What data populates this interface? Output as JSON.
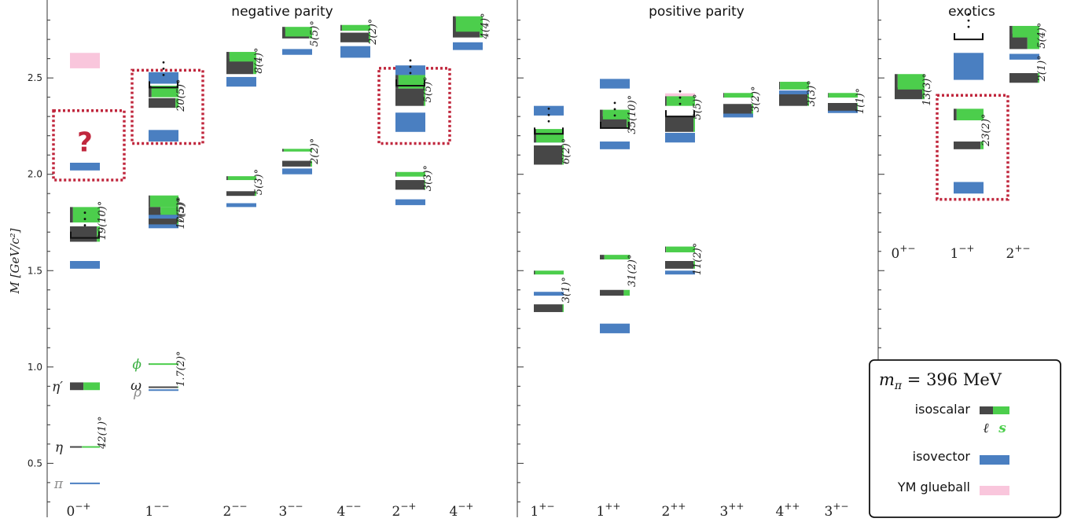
{
  "chart_data": {
    "type": "spectrum",
    "ylabel": "M [GeV/c²]",
    "ylim": [
      0.22,
      2.88
    ],
    "yticks": [
      0.5,
      1.0,
      1.5,
      2.0,
      2.5
    ],
    "ytick_labels": [
      "0.5",
      "1.0",
      "1.5",
      "2.0",
      "2.5"
    ],
    "sections": [
      {
        "key": "neg",
        "title": "negative parity"
      },
      {
        "key": "pos",
        "title": "positive parity"
      },
      {
        "key": "ex",
        "title": "exotics"
      }
    ],
    "columns": [
      {
        "id": "c0mp",
        "section": "neg",
        "base": "0",
        "sup": "−+"
      },
      {
        "id": "c1mm",
        "section": "neg",
        "base": "1",
        "sup": "−−"
      },
      {
        "id": "c2mm",
        "section": "neg",
        "base": "2",
        "sup": "−−"
      },
      {
        "id": "c3mm",
        "section": "neg",
        "base": "3",
        "sup": "−−"
      },
      {
        "id": "c4mm",
        "section": "neg",
        "base": "4",
        "sup": "−−"
      },
      {
        "id": "c2mp",
        "section": "neg",
        "base": "2",
        "sup": "−+"
      },
      {
        "id": "c4mp",
        "section": "neg",
        "base": "4",
        "sup": "−+"
      },
      {
        "id": "c1pm",
        "section": "pos",
        "base": "1",
        "sup": "+−"
      },
      {
        "id": "c1pp",
        "section": "pos",
        "base": "1",
        "sup": "++"
      },
      {
        "id": "c2pp",
        "section": "pos",
        "base": "2",
        "sup": "++"
      },
      {
        "id": "c3pp",
        "section": "pos",
        "base": "3",
        "sup": "++"
      },
      {
        "id": "c4pp",
        "section": "pos",
        "base": "4",
        "sup": "++"
      },
      {
        "id": "c3pm",
        "section": "pos",
        "base": "3",
        "sup": "+−"
      },
      {
        "id": "c0pm",
        "section": "ex",
        "base": "0",
        "sup": "+−"
      },
      {
        "id": "c1mp",
        "section": "ex",
        "base": "1",
        "sup": "−+"
      },
      {
        "id": "c2pm",
        "section": "ex",
        "base": "2",
        "sup": "+−"
      }
    ],
    "states": [
      {
        "col": "c0mp",
        "kind": "isovector",
        "mass": 0.396,
        "err": 0.002
      },
      {
        "col": "c0mp",
        "kind": "isovector",
        "mass": 1.53,
        "err": 0.02
      },
      {
        "col": "c0mp",
        "kind": "isovector",
        "mass": 2.04,
        "err": 0.02
      },
      {
        "col": "c0mp",
        "kind": "glueball",
        "mass": 2.59,
        "err": 0.04
      },
      {
        "col": "c0mp",
        "kind": "isoscalar",
        "mass": 0.585,
        "err": 0.003,
        "strange": 0.6
      },
      {
        "col": "c0mp",
        "kind": "isoscalar",
        "mass": 0.9,
        "err": 0.02,
        "strange": 0.55
      },
      {
        "col": "c0mp",
        "kind": "isoscalar",
        "mass": 1.69,
        "err": 0.04,
        "strange": 0.1
      },
      {
        "col": "c0mp",
        "kind": "isoscalar",
        "mass": 1.79,
        "err": 0.04,
        "strange": 0.9
      },
      {
        "col": "c1mm",
        "kind": "isovector",
        "mass": 0.88,
        "err": 0.003
      },
      {
        "col": "c1mm",
        "kind": "isovector",
        "mass": 1.74,
        "err": 0.02
      },
      {
        "col": "c1mm",
        "kind": "isovector",
        "mass": 2.2,
        "err": 0.03
      },
      {
        "col": "c1mm",
        "kind": "isovector",
        "mass": 2.5,
        "err": 0.03
      },
      {
        "col": "c1mm",
        "kind": "isoscalar",
        "mass": 0.895,
        "err": 0.003,
        "strange": 0.02
      },
      {
        "col": "c1mm",
        "kind": "isoscalar",
        "mass": 1.015,
        "err": 0.003,
        "strange": 0.98
      },
      {
        "col": "c1mm",
        "kind": "isoscalar",
        "mass": 1.77,
        "err": 0.03,
        "strange": 0.05
      },
      {
        "col": "c1mm",
        "kind": "isoscalar",
        "mass": 1.86,
        "err": 0.03,
        "strange": 0.95
      },
      {
        "col": "c1mm",
        "kind": "isovector",
        "mass": 1.78,
        "err": 0.01
      },
      {
        "col": "c1mm",
        "kind": "isoscalar",
        "mass": 1.81,
        "err": 0.02,
        "strange": 0.6
      },
      {
        "col": "c1mm",
        "kind": "isoscalar",
        "mass": 2.37,
        "err": 0.025,
        "strange": 0.1
      },
      {
        "col": "c1mm",
        "kind": "isoscalar",
        "mass": 2.43,
        "err": 0.03,
        "strange": 0.9
      },
      {
        "col": "c2mm",
        "kind": "isovector",
        "mass": 1.84,
        "err": 0.01
      },
      {
        "col": "c2mm",
        "kind": "isovector",
        "mass": 2.48,
        "err": 0.025
      },
      {
        "col": "c2mm",
        "kind": "isoscalar",
        "mass": 1.9,
        "err": 0.012,
        "strange": 0.05
      },
      {
        "col": "c2mm",
        "kind": "isoscalar",
        "mass": 1.98,
        "err": 0.01,
        "strange": 0.95
      },
      {
        "col": "c2mm",
        "kind": "isoscalar",
        "mass": 2.56,
        "err": 0.04,
        "strange": 0.1
      },
      {
        "col": "c2mm",
        "kind": "isoscalar",
        "mass": 2.61,
        "err": 0.025,
        "strange": 0.9
      },
      {
        "col": "c3mm",
        "kind": "isovector",
        "mass": 2.015,
        "err": 0.015
      },
      {
        "col": "c3mm",
        "kind": "isovector",
        "mass": 2.635,
        "err": 0.015
      },
      {
        "col": "c3mm",
        "kind": "isoscalar",
        "mass": 2.055,
        "err": 0.015,
        "strange": 0.05
      },
      {
        "col": "c3mm",
        "kind": "isoscalar",
        "mass": 2.125,
        "err": 0.007,
        "strange": 0.95
      },
      {
        "col": "c3mm",
        "kind": "isoscalar",
        "mass": 2.73,
        "err": 0.025,
        "strange": 0.1
      },
      {
        "col": "c3mm",
        "kind": "isoscalar",
        "mass": 2.74,
        "err": 0.025,
        "strange": 0.9
      },
      {
        "col": "c4mm",
        "kind": "isovector",
        "mass": 2.635,
        "err": 0.03
      },
      {
        "col": "c4mm",
        "kind": "isoscalar",
        "mass": 2.71,
        "err": 0.025,
        "strange": 0.05
      },
      {
        "col": "c4mm",
        "kind": "isoscalar",
        "mass": 2.76,
        "err": 0.015,
        "strange": 0.95
      },
      {
        "col": "c2mp",
        "kind": "isovector",
        "mass": 1.855,
        "err": 0.015
      },
      {
        "col": "c2mp",
        "kind": "isovector",
        "mass": 2.27,
        "err": 0.05
      },
      {
        "col": "c2mp",
        "kind": "isovector",
        "mass": 2.54,
        "err": 0.025
      },
      {
        "col": "c2mp",
        "kind": "isoscalar",
        "mass": 1.945,
        "err": 0.025,
        "strange": 0.03
      },
      {
        "col": "c2mp",
        "kind": "isoscalar",
        "mass": 2.0,
        "err": 0.012,
        "strange": 0.97
      },
      {
        "col": "c2mp",
        "kind": "isoscalar",
        "mass": 2.4,
        "err": 0.045,
        "strange": 0.05
      },
      {
        "col": "c2mp",
        "kind": "isoscalar",
        "mass": 2.48,
        "err": 0.035,
        "strange": 0.9
      },
      {
        "col": "c4mp",
        "kind": "isovector",
        "mass": 2.665,
        "err": 0.02
      },
      {
        "col": "c4mp",
        "kind": "isoscalar",
        "mass": 2.76,
        "err": 0.05,
        "strange": 0.1
      },
      {
        "col": "c4mp",
        "kind": "isoscalar",
        "mass": 2.78,
        "err": 0.04,
        "strange": 0.9
      },
      {
        "col": "c1pm",
        "kind": "isovector",
        "mass": 1.38,
        "err": 0.01
      },
      {
        "col": "c1pm",
        "kind": "isovector",
        "mass": 2.175,
        "err": 0.01
      },
      {
        "col": "c1pm",
        "kind": "isovector",
        "mass": 2.33,
        "err": 0.025
      },
      {
        "col": "c1pm",
        "kind": "isoscalar",
        "mass": 1.305,
        "err": 0.02,
        "strange": 0.04
      },
      {
        "col": "c1pm",
        "kind": "isoscalar",
        "mass": 1.49,
        "err": 0.01,
        "strange": 0.96
      },
      {
        "col": "c1pm",
        "kind": "isoscalar",
        "mass": 2.1,
        "err": 0.05,
        "strange": 0.05
      },
      {
        "col": "c1pm",
        "kind": "isoscalar",
        "mass": 2.2,
        "err": 0.035,
        "strange": 0.92
      },
      {
        "col": "c1pp",
        "kind": "isovector",
        "mass": 1.2,
        "err": 0.025
      },
      {
        "col": "c1pp",
        "kind": "isovector",
        "mass": 2.15,
        "err": 0.02
      },
      {
        "col": "c1pp",
        "kind": "isovector",
        "mass": 2.47,
        "err": 0.025
      },
      {
        "col": "c1pp",
        "kind": "isoscalar",
        "mass": 1.385,
        "err": 0.015,
        "strange": 0.2
      },
      {
        "col": "c1pp",
        "kind": "isoscalar",
        "mass": 1.57,
        "err": 0.012,
        "strange": 0.85
      },
      {
        "col": "c1pp",
        "kind": "isoscalar",
        "mass": 2.27,
        "err": 0.03,
        "strange": 0.1
      },
      {
        "col": "c1pp",
        "kind": "isoscalar",
        "mass": 2.31,
        "err": 0.025,
        "strange": 0.9
      },
      {
        "col": "c2pp",
        "kind": "isovector",
        "mass": 1.49,
        "err": 0.01
      },
      {
        "col": "c2pp",
        "kind": "isovector",
        "mass": 2.19,
        "err": 0.025
      },
      {
        "col": "c2pp",
        "kind": "glueball",
        "mass": 2.4,
        "err": 0.02
      },
      {
        "col": "c2pp",
        "kind": "isoscalar",
        "mass": 1.53,
        "err": 0.02,
        "strange": 0.05
      },
      {
        "col": "c2pp",
        "kind": "isoscalar",
        "mass": 1.61,
        "err": 0.015,
        "strange": 0.97
      },
      {
        "col": "c2pp",
        "kind": "isoscalar",
        "mass": 2.26,
        "err": 0.04,
        "strange": 0.05
      },
      {
        "col": "c2pp",
        "kind": "isoscalar",
        "mass": 2.38,
        "err": 0.025,
        "strange": 0.95
      },
      {
        "col": "c3pp",
        "kind": "isovector",
        "mass": 2.31,
        "err": 0.015
      },
      {
        "col": "c3pp",
        "kind": "isoscalar",
        "mass": 2.34,
        "err": 0.025,
        "strange": 0.05
      },
      {
        "col": "c3pp",
        "kind": "isoscalar",
        "mass": 2.41,
        "err": 0.012,
        "strange": 0.97
      },
      {
        "col": "c4pp",
        "kind": "isovector",
        "mass": 2.42,
        "err": 0.015
      },
      {
        "col": "c4pp",
        "kind": "isoscalar",
        "mass": 2.385,
        "err": 0.03,
        "strange": 0.05
      },
      {
        "col": "c4pp",
        "kind": "isoscalar",
        "mass": 2.46,
        "err": 0.02,
        "strange": 0.97
      },
      {
        "col": "c3pm",
        "kind": "isovector",
        "mass": 2.33,
        "err": 0.012
      },
      {
        "col": "c3pm",
        "kind": "isoscalar",
        "mass": 2.35,
        "err": 0.02,
        "strange": 0.02
      },
      {
        "col": "c3pm",
        "kind": "isoscalar",
        "mass": 2.41,
        "err": 0.012,
        "strange": 0.98
      },
      {
        "col": "c0pm",
        "kind": "isovector",
        "mass": 2.41,
        "err": 0.02
      },
      {
        "col": "c0pm",
        "kind": "isoscalar",
        "mass": 2.42,
        "err": 0.03,
        "strange": 0.08
      },
      {
        "col": "c0pm",
        "kind": "isoscalar",
        "mass": 2.48,
        "err": 0.04,
        "strange": 0.9
      },
      {
        "col": "c1mp",
        "kind": "isovector",
        "mass": 1.93,
        "err": 0.03
      },
      {
        "col": "c1mp",
        "kind": "isovector",
        "mass": 2.56,
        "err": 0.07
      },
      {
        "col": "c1mp",
        "kind": "isoscalar",
        "mass": 2.15,
        "err": 0.02,
        "strange": 0.1
      },
      {
        "col": "c1mp",
        "kind": "isoscalar",
        "mass": 2.31,
        "err": 0.03,
        "strange": 0.9
      },
      {
        "col": "c2pm",
        "kind": "isovector",
        "mass": 2.61,
        "err": 0.015
      },
      {
        "col": "c2pm",
        "kind": "isoscalar",
        "mass": 2.5,
        "err": 0.025,
        "strange": 0.05
      },
      {
        "col": "c2pm",
        "kind": "isoscalar",
        "mass": 2.69,
        "err": 0.04,
        "strange": 0.4
      },
      {
        "col": "c2pm",
        "kind": "isoscalar",
        "mass": 2.74,
        "err": 0.03,
        "strange": 0.9
      }
    ],
    "angles": [
      {
        "col": "c0mp",
        "mass": 0.66,
        "text": "42(1)°"
      },
      {
        "col": "c0mp",
        "mass": 1.76,
        "text": "19(10)°"
      },
      {
        "col": "c1mm",
        "mass": 0.99,
        "text": "1.7(2)°"
      },
      {
        "col": "c1mm",
        "mass": 1.81,
        "text": "7(5)°"
      },
      {
        "col": "c1mm",
        "mass": 1.8,
        "text": "10(5)°"
      },
      {
        "col": "c1mm",
        "mass": 2.41,
        "text": "20(5)°"
      },
      {
        "col": "c2mm",
        "mass": 1.96,
        "text": "5(3)°"
      },
      {
        "col": "c2mm",
        "mass": 2.59,
        "text": "8(4)°"
      },
      {
        "col": "c3mm",
        "mass": 2.12,
        "text": "2(2)°"
      },
      {
        "col": "c3mm",
        "mass": 2.73,
        "text": "5(5)°"
      },
      {
        "col": "c4mm",
        "mass": 2.74,
        "text": "2(2)°"
      },
      {
        "col": "c2mp",
        "mass": 1.98,
        "text": "3(3)°"
      },
      {
        "col": "c2mp",
        "mass": 2.44,
        "text": "5(5)°"
      },
      {
        "col": "c4mp",
        "mass": 2.77,
        "text": "4(4)°"
      },
      {
        "col": "c1pm",
        "mass": 1.4,
        "text": "3(1)°"
      },
      {
        "col": "c1pm",
        "mass": 2.12,
        "text": "6(2)°"
      },
      {
        "col": "c1pp",
        "mass": 1.5,
        "text": "31(2)°"
      },
      {
        "col": "c1pp",
        "mass": 2.31,
        "text": "35(10)°"
      },
      {
        "col": "c2pp",
        "mass": 1.56,
        "text": "11(2)°"
      },
      {
        "col": "c2pp",
        "mass": 2.35,
        "text": "5(5)°"
      },
      {
        "col": "c3pp",
        "mass": 2.39,
        "text": "3(2)°"
      },
      {
        "col": "c4pp",
        "mass": 2.42,
        "text": "3(3)°"
      },
      {
        "col": "c3pm",
        "mass": 2.38,
        "text": "1(1)°"
      },
      {
        "col": "c0pm",
        "mass": 2.44,
        "text": "13(3)°"
      },
      {
        "col": "c1mp",
        "mass": 2.23,
        "text": "23(2)°"
      },
      {
        "col": "c2pm",
        "mass": 2.55,
        "text": "2(1)°"
      },
      {
        "col": "c2pm",
        "mass": 2.72,
        "text": "5(4)°"
      }
    ],
    "name_labels": [
      {
        "col": "c0mp",
        "mass": 0.396,
        "text": "π",
        "color": "#8c8c8c"
      },
      {
        "col": "c0mp",
        "mass": 0.585,
        "text": "η",
        "color": "#222222"
      },
      {
        "col": "c0mp",
        "mass": 0.9,
        "text": "η′",
        "color": "#222222"
      },
      {
        "col": "c1mm",
        "mass": 1.015,
        "text": "ϕ",
        "color": "#3cb043"
      },
      {
        "col": "c1mm",
        "mass": 0.905,
        "text": "ω",
        "color": "#222222"
      },
      {
        "col": "c1mm",
        "mass": 0.87,
        "text": "ρ",
        "color": "#8c8c8c"
      }
    ],
    "question_mark": {
      "col": "c0mp",
      "mass": 2.16,
      "text": "?"
    },
    "highlight_boxes": [
      {
        "cols": [
          "c0mp"
        ],
        "ymin": 1.97,
        "ymax": 2.33
      },
      {
        "cols": [
          "c1mm"
        ],
        "ymin": 2.16,
        "ymax": 2.54
      },
      {
        "cols": [
          "c2mp"
        ],
        "ymin": 2.16,
        "ymax": 2.55
      },
      {
        "cols": [
          "c1mp"
        ],
        "ymin": 1.87,
        "ymax": 2.41
      }
    ],
    "brackets": [
      {
        "col": "c0mp",
        "mass": 1.67
      },
      {
        "col": "c1mm",
        "mass": 2.45
      },
      {
        "col": "c2mp",
        "mass": 2.46
      },
      {
        "col": "c1pm",
        "mass": 2.21
      },
      {
        "col": "c1pp",
        "mass": 2.24
      },
      {
        "col": "c2pp",
        "mass": 2.3
      },
      {
        "col": "c1mp",
        "mass": 2.7
      }
    ],
    "legend": {
      "title": "m_π = 396 MeV",
      "title_main": "m",
      "title_sub": "π",
      "title_rest": " = 396 MeV",
      "items": [
        {
          "key": "isoscalar",
          "label": "isoscalar"
        },
        {
          "key": "isovector",
          "label": "isovector"
        },
        {
          "key": "glueball",
          "label": "YM glueball"
        }
      ],
      "light_label": "ℓ",
      "strange_label": "s"
    },
    "colors": {
      "isovector": "#4a7fc1",
      "isoscalar_light": "#474747",
      "isoscalar_strange": "#4cce4c",
      "glueball": "#f9c6dc",
      "highlight": "#c0273d",
      "axis": "#333333"
    }
  }
}
